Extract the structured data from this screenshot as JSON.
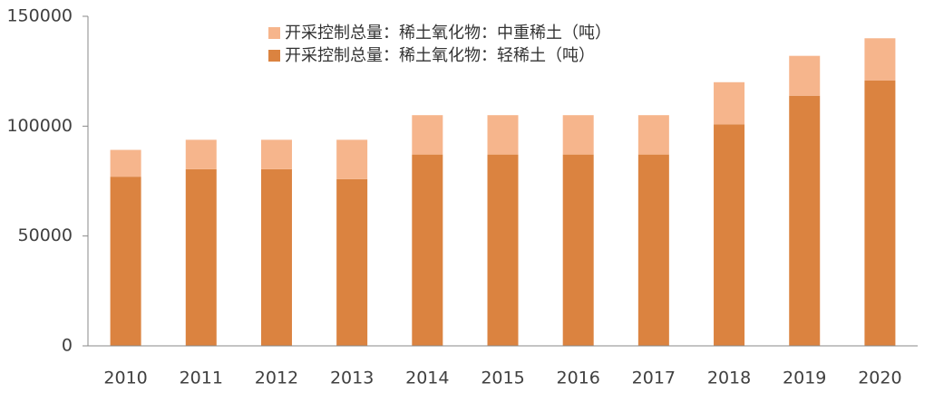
{
  "chart_data": {
    "type": "stacked_bar",
    "categories": [
      "2010",
      "2011",
      "2012",
      "2013",
      "2014",
      "2015",
      "2016",
      "2017",
      "2018",
      "2019",
      "2020"
    ],
    "series": [
      {
        "name": "开采控制总量：稀土氧化物：中重稀土（吨）",
        "color": "#f6b58c",
        "values": [
          12200,
          13400,
          13400,
          17900,
          17900,
          17900,
          17900,
          17900,
          19150,
          18150,
          19150
        ]
      },
      {
        "name": "开采控制总量：稀土氧化物：轻稀土（吨）",
        "color": "#db8340",
        "values": [
          77000,
          80400,
          80400,
          75900,
          87100,
          87100,
          87100,
          87100,
          100850,
          113850,
          120850
        ]
      }
    ],
    "ylim": [
      0,
      150000
    ],
    "yticks": [
      0,
      50000,
      100000,
      150000
    ],
    "grid": false
  }
}
